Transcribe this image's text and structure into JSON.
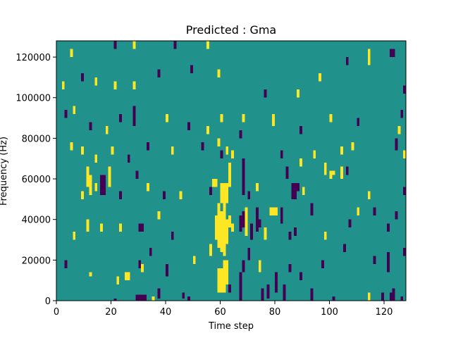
{
  "chart_data": {
    "type": "heatmap",
    "title": "Predicted : Gma",
    "xlabel": "Time step",
    "ylabel": "Frequency (Hz)",
    "xlim": [
      0,
      128
    ],
    "ylim": [
      0,
      128000
    ],
    "x_ticks": [
      0,
      20,
      40,
      60,
      80,
      100,
      120
    ],
    "y_ticks": [
      0,
      20000,
      40000,
      60000,
      80000,
      100000,
      120000
    ],
    "x_tick_labels": [
      "0",
      "20",
      "40",
      "60",
      "80",
      "100",
      "120"
    ],
    "y_tick_labels": [
      "0",
      "20000",
      "40000",
      "60000",
      "80000",
      "100000",
      "120000"
    ],
    "grid": false,
    "n_time_steps": 128,
    "n_frequency_bins": 128,
    "bin_height_hz": 1000,
    "colormap": "viridis",
    "colors": {
      "background": "#21918c",
      "low": "#440154",
      "high": "#fde725"
    },
    "cells": [
      {
        "t": 21,
        "f0": 0,
        "f1": 1000,
        "c": "low"
      },
      {
        "t": 29,
        "f0": 0,
        "f1": 3000,
        "c": "low"
      },
      {
        "t": 30,
        "f0": 0,
        "f1": 3000,
        "c": "low"
      },
      {
        "t": 31,
        "f0": 0,
        "f1": 3000,
        "c": "low"
      },
      {
        "t": 32,
        "f0": 0,
        "f1": 3000,
        "c": "low"
      },
      {
        "t": 35,
        "f0": 0,
        "f1": 2000,
        "c": "high"
      },
      {
        "t": 37,
        "f0": 1000,
        "f1": 6000,
        "c": "low"
      },
      {
        "t": 46,
        "f0": 1000,
        "f1": 4000,
        "c": "low"
      },
      {
        "t": 48,
        "f0": 0,
        "f1": 2000,
        "c": "low"
      },
      {
        "t": 59,
        "f0": 4000,
        "f1": 16000,
        "c": "high"
      },
      {
        "t": 60,
        "f0": 4000,
        "f1": 16000,
        "c": "high"
      },
      {
        "t": 61,
        "f0": 4000,
        "f1": 20000,
        "c": "high"
      },
      {
        "t": 62,
        "f0": 8000,
        "f1": 20000,
        "c": "high"
      },
      {
        "t": 63,
        "f0": 4000,
        "f1": 8000,
        "c": "low"
      },
      {
        "t": 67,
        "f0": 0,
        "f1": 14000,
        "c": "low"
      },
      {
        "t": 75,
        "f0": 0,
        "f1": 6000,
        "c": "low"
      },
      {
        "t": 77,
        "f0": 1000,
        "f1": 8000,
        "c": "low"
      },
      {
        "t": 80,
        "f0": 4000,
        "f1": 14000,
        "c": "low"
      },
      {
        "t": 83,
        "f0": 0,
        "f1": 8000,
        "c": "low"
      },
      {
        "t": 93,
        "f0": 0,
        "f1": 6000,
        "c": "low"
      },
      {
        "t": 101,
        "f0": 0,
        "f1": 2000,
        "c": "low"
      },
      {
        "t": 114,
        "f0": 0,
        "f1": 4000,
        "c": "high"
      },
      {
        "t": 119,
        "f0": 0,
        "f1": 4000,
        "c": "low"
      },
      {
        "t": 122,
        "f0": 0,
        "f1": 4000,
        "c": "low"
      },
      {
        "t": 123,
        "f0": 0,
        "f1": 6000,
        "c": "low"
      },
      {
        "t": 126,
        "f0": 0,
        "f1": 2000,
        "c": "low"
      },
      {
        "t": 3,
        "f0": 16000,
        "f1": 20000,
        "c": "low"
      },
      {
        "t": 12,
        "f0": 12000,
        "f1": 14000,
        "c": "high"
      },
      {
        "t": 22,
        "f0": 8000,
        "f1": 12000,
        "c": "high"
      },
      {
        "t": 25,
        "f0": 10000,
        "f1": 14000,
        "c": "high"
      },
      {
        "t": 26,
        "f0": 10000,
        "f1": 14000,
        "c": "high"
      },
      {
        "t": 30,
        "f0": 16000,
        "f1": 20000,
        "c": "low"
      },
      {
        "t": 31,
        "f0": 14000,
        "f1": 18000,
        "c": "high"
      },
      {
        "t": 34,
        "f0": 22000,
        "f1": 26000,
        "c": "low"
      },
      {
        "t": 40,
        "f0": 12000,
        "f1": 18000,
        "c": "low"
      },
      {
        "t": 50,
        "f0": 18000,
        "f1": 22000,
        "c": "high"
      },
      {
        "t": 56,
        "f0": 22000,
        "f1": 28000,
        "c": "high"
      },
      {
        "t": 68,
        "f0": 14000,
        "f1": 20000,
        "c": "low"
      },
      {
        "t": 70,
        "f0": 20000,
        "f1": 26000,
        "c": "low"
      },
      {
        "t": 74,
        "f0": 14000,
        "f1": 20000,
        "c": "high"
      },
      {
        "t": 85,
        "f0": 14000,
        "f1": 18000,
        "c": "low"
      },
      {
        "t": 89,
        "f0": 10000,
        "f1": 14000,
        "c": "low"
      },
      {
        "t": 97,
        "f0": 16000,
        "f1": 20000,
        "c": "low"
      },
      {
        "t": 105,
        "f0": 24000,
        "f1": 28000,
        "c": "low"
      },
      {
        "t": 116,
        "f0": 18000,
        "f1": 22000,
        "c": "low"
      },
      {
        "t": 121,
        "f0": 14000,
        "f1": 24000,
        "c": "low"
      },
      {
        "t": 127,
        "f0": 22000,
        "f1": 26000,
        "c": "low"
      },
      {
        "t": 6,
        "f0": 30000,
        "f1": 34000,
        "c": "high"
      },
      {
        "t": 11,
        "f0": 34000,
        "f1": 40000,
        "c": "high"
      },
      {
        "t": 16,
        "f0": 34000,
        "f1": 38000,
        "c": "high"
      },
      {
        "t": 23,
        "f0": 34000,
        "f1": 38000,
        "c": "high"
      },
      {
        "t": 30,
        "f0": 34000,
        "f1": 38000,
        "c": "low"
      },
      {
        "t": 31,
        "f0": 34000,
        "f1": 38000,
        "c": "low"
      },
      {
        "t": 37,
        "f0": 40000,
        "f1": 44000,
        "c": "high"
      },
      {
        "t": 42,
        "f0": 30000,
        "f1": 34000,
        "c": "low"
      },
      {
        "t": 58,
        "f0": 30000,
        "f1": 42000,
        "c": "high"
      },
      {
        "t": 59,
        "f0": 26000,
        "f1": 48000,
        "c": "high"
      },
      {
        "t": 60,
        "f0": 24000,
        "f1": 44000,
        "c": "high"
      },
      {
        "t": 61,
        "f0": 22000,
        "f1": 48000,
        "c": "high"
      },
      {
        "t": 62,
        "f0": 28000,
        "f1": 40000,
        "c": "high"
      },
      {
        "t": 63,
        "f0": 36000,
        "f1": 42000,
        "c": "high"
      },
      {
        "t": 64,
        "f0": 34000,
        "f1": 38000,
        "c": "high"
      },
      {
        "t": 67,
        "f0": 34000,
        "f1": 42000,
        "c": "low"
      },
      {
        "t": 68,
        "f0": 36000,
        "f1": 44000,
        "c": "low"
      },
      {
        "t": 69,
        "f0": 32000,
        "f1": 46000,
        "c": "high"
      },
      {
        "t": 71,
        "f0": 30000,
        "f1": 38000,
        "c": "low"
      },
      {
        "t": 73,
        "f0": 34000,
        "f1": 46000,
        "c": "low"
      },
      {
        "t": 74,
        "f0": 36000,
        "f1": 40000,
        "c": "low"
      },
      {
        "t": 76,
        "f0": 30000,
        "f1": 36000,
        "c": "high"
      },
      {
        "t": 78,
        "f0": 42000,
        "f1": 46000,
        "c": "high"
      },
      {
        "t": 79,
        "f0": 42000,
        "f1": 46000,
        "c": "high"
      },
      {
        "t": 80,
        "f0": 42000,
        "f1": 46000,
        "c": "high"
      },
      {
        "t": 82,
        "f0": 38000,
        "f1": 46000,
        "c": "low"
      },
      {
        "t": 85,
        "f0": 30000,
        "f1": 34000,
        "c": "low"
      },
      {
        "t": 87,
        "f0": 32000,
        "f1": 36000,
        "c": "low"
      },
      {
        "t": 93,
        "f0": 42000,
        "f1": 48000,
        "c": "low"
      },
      {
        "t": 98,
        "f0": 30000,
        "f1": 34000,
        "c": "high"
      },
      {
        "t": 107,
        "f0": 36000,
        "f1": 40000,
        "c": "low"
      },
      {
        "t": 110,
        "f0": 42000,
        "f1": 46000,
        "c": "high"
      },
      {
        "t": 116,
        "f0": 42000,
        "f1": 46000,
        "c": "low"
      },
      {
        "t": 121,
        "f0": 34000,
        "f1": 38000,
        "c": "low"
      },
      {
        "t": 124,
        "f0": 40000,
        "f1": 44000,
        "c": "low"
      },
      {
        "t": 9,
        "f0": 50000,
        "f1": 54000,
        "c": "high"
      },
      {
        "t": 11,
        "f0": 56000,
        "f1": 66000,
        "c": "high"
      },
      {
        "t": 12,
        "f0": 52000,
        "f1": 62000,
        "c": "high"
      },
      {
        "t": 14,
        "f0": 54000,
        "f1": 58000,
        "c": "high"
      },
      {
        "t": 16,
        "f0": 52000,
        "f1": 62000,
        "c": "low"
      },
      {
        "t": 17,
        "f0": 52000,
        "f1": 62000,
        "c": "low"
      },
      {
        "t": 19,
        "f0": 56000,
        "f1": 66000,
        "c": "high"
      },
      {
        "t": 23,
        "f0": 50000,
        "f1": 54000,
        "c": "low"
      },
      {
        "t": 29,
        "f0": 60000,
        "f1": 64000,
        "c": "low"
      },
      {
        "t": 33,
        "f0": 54000,
        "f1": 58000,
        "c": "high"
      },
      {
        "t": 39,
        "f0": 50000,
        "f1": 54000,
        "c": "low"
      },
      {
        "t": 45,
        "f0": 50000,
        "f1": 54000,
        "c": "high"
      },
      {
        "t": 57,
        "f0": 56000,
        "f1": 60000,
        "c": "high"
      },
      {
        "t": 58,
        "f0": 56000,
        "f1": 60000,
        "c": "high"
      },
      {
        "t": 56,
        "f0": 52000,
        "f1": 56000,
        "c": "low"
      },
      {
        "t": 60,
        "f0": 48000,
        "f1": 58000,
        "c": "high"
      },
      {
        "t": 61,
        "f0": 48000,
        "f1": 58000,
        "c": "high"
      },
      {
        "t": 62,
        "f0": 48000,
        "f1": 58000,
        "c": "high"
      },
      {
        "t": 63,
        "f0": 56000,
        "f1": 68000,
        "c": "high"
      },
      {
        "t": 68,
        "f0": 52000,
        "f1": 70000,
        "c": "low"
      },
      {
        "t": 70,
        "f0": 50000,
        "f1": 54000,
        "c": "low"
      },
      {
        "t": 73,
        "f0": 54000,
        "f1": 58000,
        "c": "high"
      },
      {
        "t": 84,
        "f0": 60000,
        "f1": 66000,
        "c": "low"
      },
      {
        "t": 86,
        "f0": 50000,
        "f1": 58000,
        "c": "low"
      },
      {
        "t": 87,
        "f0": 50000,
        "f1": 58000,
        "c": "low"
      },
      {
        "t": 88,
        "f0": 54000,
        "f1": 58000,
        "c": "low"
      },
      {
        "t": 90,
        "f0": 52000,
        "f1": 56000,
        "c": "high"
      },
      {
        "t": 98,
        "f0": 62000,
        "f1": 68000,
        "c": "high"
      },
      {
        "t": 100,
        "f0": 60000,
        "f1": 64000,
        "c": "high"
      },
      {
        "t": 101,
        "f0": 62000,
        "f1": 64000,
        "c": "high"
      },
      {
        "t": 104,
        "f0": 60000,
        "f1": 66000,
        "c": "high"
      },
      {
        "t": 106,
        "f0": 62000,
        "f1": 66000,
        "c": "low"
      },
      {
        "t": 114,
        "f0": 50000,
        "f1": 54000,
        "c": "high"
      },
      {
        "t": 127,
        "f0": 52000,
        "f1": 56000,
        "c": "low"
      },
      {
        "t": 5,
        "f0": 74000,
        "f1": 78000,
        "c": "high"
      },
      {
        "t": 9,
        "f0": 72000,
        "f1": 76000,
        "c": "high"
      },
      {
        "t": 14,
        "f0": 68000,
        "f1": 72000,
        "c": "high"
      },
      {
        "t": 20,
        "f0": 72000,
        "f1": 76000,
        "c": "high"
      },
      {
        "t": 26,
        "f0": 68000,
        "f1": 72000,
        "c": "low"
      },
      {
        "t": 33,
        "f0": 74000,
        "f1": 78000,
        "c": "low"
      },
      {
        "t": 42,
        "f0": 72000,
        "f1": 76000,
        "c": "high"
      },
      {
        "t": 53,
        "f0": 74000,
        "f1": 78000,
        "c": "low"
      },
      {
        "t": 59,
        "f0": 76000,
        "f1": 80000,
        "c": "high"
      },
      {
        "t": 60,
        "f0": 70000,
        "f1": 74000,
        "c": "low"
      },
      {
        "t": 62,
        "f0": 72000,
        "f1": 76000,
        "c": "high"
      },
      {
        "t": 64,
        "f0": 70000,
        "f1": 74000,
        "c": "high"
      },
      {
        "t": 67,
        "f0": 80000,
        "f1": 84000,
        "c": "low"
      },
      {
        "t": 82,
        "f0": 70000,
        "f1": 74000,
        "c": "low"
      },
      {
        "t": 89,
        "f0": 66000,
        "f1": 70000,
        "c": "high"
      },
      {
        "t": 94,
        "f0": 70000,
        "f1": 74000,
        "c": "high"
      },
      {
        "t": 104,
        "f0": 72000,
        "f1": 76000,
        "c": "high"
      },
      {
        "t": 108,
        "f0": 74000,
        "f1": 78000,
        "c": "high"
      },
      {
        "t": 124,
        "f0": 74000,
        "f1": 80000,
        "c": "low"
      },
      {
        "t": 127,
        "f0": 70000,
        "f1": 74000,
        "c": "high"
      },
      {
        "t": 3,
        "f0": 90000,
        "f1": 94000,
        "c": "low"
      },
      {
        "t": 6,
        "f0": 92000,
        "f1": 96000,
        "c": "high"
      },
      {
        "t": 12,
        "f0": 84000,
        "f1": 88000,
        "c": "low"
      },
      {
        "t": 18,
        "f0": 82000,
        "f1": 86000,
        "c": "high"
      },
      {
        "t": 23,
        "f0": 88000,
        "f1": 92000,
        "c": "low"
      },
      {
        "t": 28,
        "f0": 86000,
        "f1": 96000,
        "c": "low"
      },
      {
        "t": 40,
        "f0": 88000,
        "f1": 92000,
        "c": "high"
      },
      {
        "t": 48,
        "f0": 84000,
        "f1": 88000,
        "c": "low"
      },
      {
        "t": 55,
        "f0": 82000,
        "f1": 86000,
        "c": "high"
      },
      {
        "t": 60,
        "f0": 88000,
        "f1": 92000,
        "c": "high"
      },
      {
        "t": 68,
        "f0": 88000,
        "f1": 92000,
        "c": "high"
      },
      {
        "t": 79,
        "f0": 86000,
        "f1": 92000,
        "c": "high"
      },
      {
        "t": 89,
        "f0": 82000,
        "f1": 86000,
        "c": "low"
      },
      {
        "t": 100,
        "f0": 88000,
        "f1": 92000,
        "c": "high"
      },
      {
        "t": 110,
        "f0": 86000,
        "f1": 90000,
        "c": "low"
      },
      {
        "t": 125,
        "f0": 82000,
        "f1": 86000,
        "c": "high"
      },
      {
        "t": 126,
        "f0": 90000,
        "f1": 94000,
        "c": "low"
      },
      {
        "t": 2,
        "f0": 104000,
        "f1": 108000,
        "c": "high"
      },
      {
        "t": 9,
        "f0": 108000,
        "f1": 112000,
        "c": "low"
      },
      {
        "t": 14,
        "f0": 106000,
        "f1": 110000,
        "c": "high"
      },
      {
        "t": 21,
        "f0": 104000,
        "f1": 108000,
        "c": "high"
      },
      {
        "t": 28,
        "f0": 104000,
        "f1": 108000,
        "c": "high"
      },
      {
        "t": 37,
        "f0": 110000,
        "f1": 114000,
        "c": "low"
      },
      {
        "t": 49,
        "f0": 112000,
        "f1": 116000,
        "c": "low"
      },
      {
        "t": 59,
        "f0": 110000,
        "f1": 114000,
        "c": "high"
      },
      {
        "t": 76,
        "f0": 100000,
        "f1": 104000,
        "c": "low"
      },
      {
        "t": 88,
        "f0": 100000,
        "f1": 104000,
        "c": "high"
      },
      {
        "t": 96,
        "f0": 108000,
        "f1": 112000,
        "c": "high"
      },
      {
        "t": 114,
        "f0": 116000,
        "f1": 124000,
        "c": "high"
      },
      {
        "t": 122,
        "f0": 120000,
        "f1": 124000,
        "c": "low"
      },
      {
        "t": 123,
        "f0": 120000,
        "f1": 124000,
        "c": "low"
      },
      {
        "t": 127,
        "f0": 102000,
        "f1": 106000,
        "c": "low"
      },
      {
        "t": 5,
        "f0": 120000,
        "f1": 124000,
        "c": "high"
      },
      {
        "t": 21,
        "f0": 124000,
        "f1": 128000,
        "c": "low"
      },
      {
        "t": 28,
        "f0": 124000,
        "f1": 128000,
        "c": "high"
      },
      {
        "t": 43,
        "f0": 124000,
        "f1": 128000,
        "c": "low"
      },
      {
        "t": 55,
        "f0": 124000,
        "f1": 128000,
        "c": "high"
      },
      {
        "t": 106,
        "f0": 116000,
        "f1": 120000,
        "c": "low"
      }
    ]
  }
}
